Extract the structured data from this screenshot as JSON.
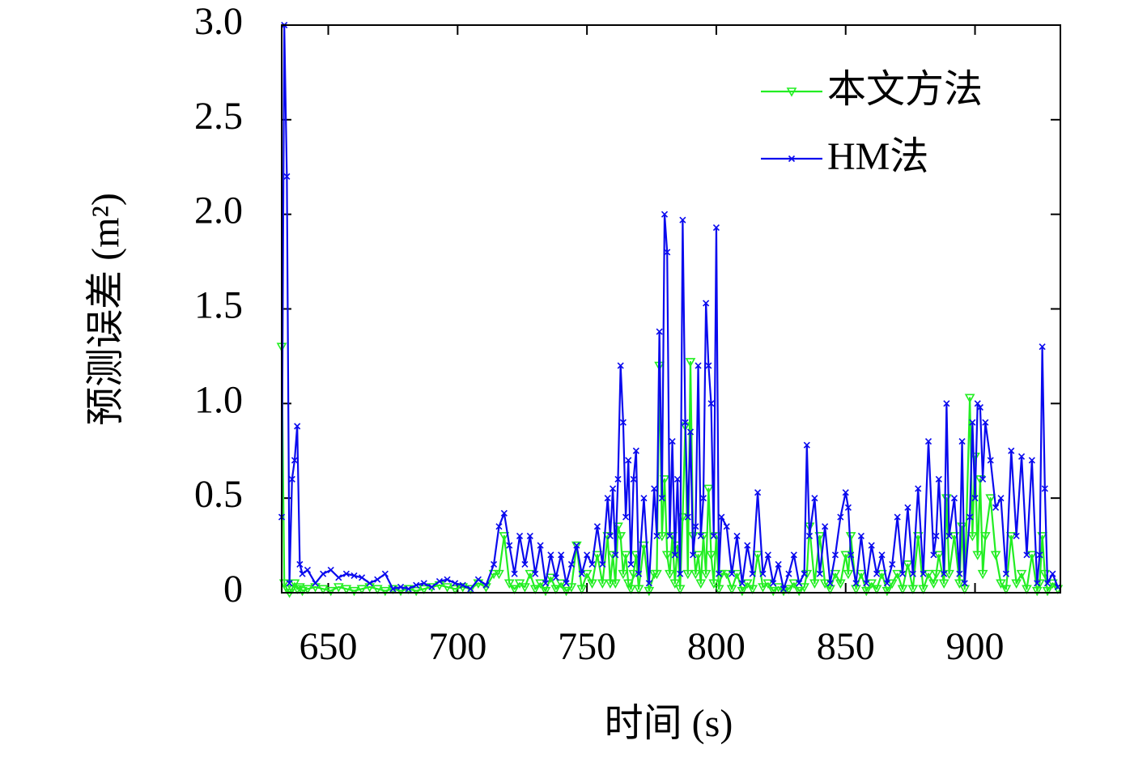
{
  "chart_data": {
    "type": "line",
    "xlabel": "时间 (s)",
    "ylabel": "预测误差 (m²)",
    "x": [
      632,
      633,
      634,
      635,
      636,
      637,
      638,
      639,
      640,
      642,
      645,
      648,
      651,
      654,
      657,
      660,
      663,
      666,
      669,
      672,
      675,
      678,
      681,
      684,
      687,
      690,
      693,
      696,
      699,
      702,
      705,
      708,
      711,
      714,
      716,
      718,
      720,
      722,
      724,
      726,
      728,
      730,
      732,
      734,
      736,
      738,
      740,
      742,
      744,
      746,
      748,
      750,
      752,
      754,
      756,
      758,
      759,
      760,
      761,
      762,
      763,
      764,
      765,
      766,
      767,
      768,
      769,
      770,
      772,
      774,
      776,
      777,
      778,
      779,
      780,
      781,
      782,
      783,
      784,
      785,
      786,
      787,
      788,
      789,
      790,
      791,
      792,
      793,
      794,
      795,
      796,
      797,
      798,
      799,
      800,
      801,
      802,
      804,
      806,
      808,
      810,
      812,
      814,
      816,
      818,
      820,
      822,
      824,
      826,
      828,
      830,
      832,
      834,
      835,
      836,
      838,
      840,
      842,
      844,
      846,
      848,
      850,
      851,
      852,
      854,
      856,
      858,
      860,
      862,
      864,
      866,
      868,
      870,
      872,
      874,
      876,
      878,
      880,
      882,
      884,
      885,
      886,
      888,
      889,
      890,
      892,
      894,
      895,
      896,
      898,
      899,
      900,
      901,
      902,
      903,
      904,
      906,
      908,
      910,
      912,
      914,
      916,
      918,
      920,
      922,
      924,
      925,
      926,
      927,
      928,
      930,
      932
    ],
    "series": [
      {
        "name": "本文方法",
        "color": "#22ee22",
        "marker": "triangle-down",
        "values": [
          1.3,
          0.05,
          0.02,
          0.0,
          0.02,
          0.05,
          0.02,
          0.03,
          0.01,
          0.02,
          0.03,
          0.02,
          0.01,
          0.03,
          0.02,
          0.01,
          0.02,
          0.03,
          0.02,
          0.01,
          0.02,
          0.01,
          0.02,
          0.01,
          0.02,
          0.03,
          0.04,
          0.03,
          0.02,
          0.03,
          0.02,
          0.05,
          0.03,
          0.1,
          0.1,
          0.3,
          0.05,
          0.02,
          0.05,
          0.03,
          0.1,
          0.02,
          0.05,
          0.01,
          0.08,
          0.02,
          0.05,
          0.01,
          0.03,
          0.25,
          0.02,
          0.1,
          0.05,
          0.2,
          0.05,
          0.3,
          0.05,
          0.2,
          0.05,
          0.35,
          0.3,
          0.1,
          0.2,
          0.05,
          0.02,
          0.1,
          0.2,
          0.02,
          0.25,
          0.01,
          0.1,
          0.1,
          1.2,
          0.3,
          0.6,
          0.2,
          0.1,
          0.3,
          0.05,
          0.25,
          0.02,
          0.4,
          0.88,
          0.1,
          1.22,
          0.3,
          0.1,
          0.2,
          0.05,
          0.3,
          0.1,
          0.55,
          0.2,
          0.05,
          0.3,
          0.02,
          0.1,
          0.1,
          0.02,
          0.1,
          0.01,
          0.05,
          0.02,
          0.2,
          0.03,
          0.05,
          0.01,
          0.03,
          0.01,
          0.02,
          0.05,
          0.01,
          0.03,
          0.1,
          0.35,
          0.05,
          0.3,
          0.05,
          0.02,
          0.1,
          0.05,
          0.2,
          0.1,
          0.3,
          0.02,
          0.1,
          0.01,
          0.05,
          0.02,
          0.1,
          0.01,
          0.05,
          0.1,
          0.02,
          0.15,
          0.02,
          0.3,
          0.02,
          0.1,
          0.05,
          0.1,
          0.2,
          0.05,
          0.5,
          0.1,
          0.3,
          0.05,
          0.35,
          0.02,
          1.03,
          0.3,
          0.72,
          0.2,
          0.6,
          0.1,
          0.3,
          0.5,
          0.2,
          0.05,
          0.02,
          0.3,
          0.05,
          0.1,
          0.02,
          0.2,
          0.01,
          0.05,
          0.3,
          0.1,
          0.01,
          0.05,
          0.02
        ]
      },
      {
        "name": "HM法",
        "color": "#0a0aee",
        "marker": "x",
        "values": [
          0.4,
          3.0,
          2.2,
          0.05,
          0.6,
          0.7,
          0.88,
          0.15,
          0.1,
          0.12,
          0.05,
          0.1,
          0.12,
          0.08,
          0.1,
          0.09,
          0.08,
          0.05,
          0.07,
          0.1,
          0.02,
          0.03,
          0.02,
          0.04,
          0.05,
          0.03,
          0.06,
          0.07,
          0.05,
          0.04,
          0.02,
          0.07,
          0.04,
          0.15,
          0.35,
          0.42,
          0.25,
          0.1,
          0.3,
          0.15,
          0.3,
          0.1,
          0.25,
          0.05,
          0.2,
          0.08,
          0.2,
          0.05,
          0.15,
          0.25,
          0.1,
          0.2,
          0.15,
          0.35,
          0.15,
          0.5,
          0.3,
          0.55,
          0.2,
          0.6,
          1.2,
          0.9,
          0.4,
          0.7,
          0.15,
          0.6,
          0.75,
          0.1,
          0.5,
          0.05,
          0.55,
          0.3,
          1.38,
          0.5,
          2.0,
          1.8,
          0.3,
          0.8,
          0.2,
          0.6,
          0.1,
          1.97,
          0.9,
          0.4,
          0.85,
          0.2,
          0.35,
          1.2,
          0.3,
          0.5,
          1.53,
          1.2,
          1.0,
          0.3,
          1.93,
          0.1,
          0.4,
          0.35,
          0.1,
          0.3,
          0.05,
          0.25,
          0.1,
          0.53,
          0.1,
          0.2,
          0.05,
          0.15,
          0.02,
          0.1,
          0.2,
          0.05,
          0.1,
          0.78,
          0.3,
          0.5,
          0.1,
          0.35,
          0.05,
          0.2,
          0.4,
          0.53,
          0.45,
          0.2,
          0.05,
          0.3,
          0.05,
          0.25,
          0.1,
          0.2,
          0.05,
          0.15,
          0.4,
          0.1,
          0.45,
          0.1,
          0.55,
          0.1,
          0.8,
          0.2,
          0.3,
          0.6,
          0.1,
          1.0,
          0.3,
          0.5,
          0.1,
          0.8,
          0.05,
          0.4,
          0.9,
          0.5,
          1.0,
          0.98,
          0.6,
          0.9,
          0.7,
          0.45,
          0.5,
          0.1,
          0.75,
          0.3,
          0.72,
          0.2,
          0.7,
          0.05,
          0.2,
          1.3,
          0.55,
          0.05,
          0.1,
          0.03
        ]
      }
    ],
    "xlim": [
      632,
      933
    ],
    "xticks": [
      650,
      700,
      750,
      800,
      850,
      900
    ],
    "ylim": [
      0,
      3
    ],
    "yticks": [
      0,
      0.5,
      {
        "value": 1,
        "label": "1.0"
      },
      1.5,
      {
        "value": 2,
        "label": "2.0"
      },
      2.5,
      {
        "value": 3,
        "label": "3.0"
      }
    ],
    "legend": "upper right",
    "grid": false
  }
}
